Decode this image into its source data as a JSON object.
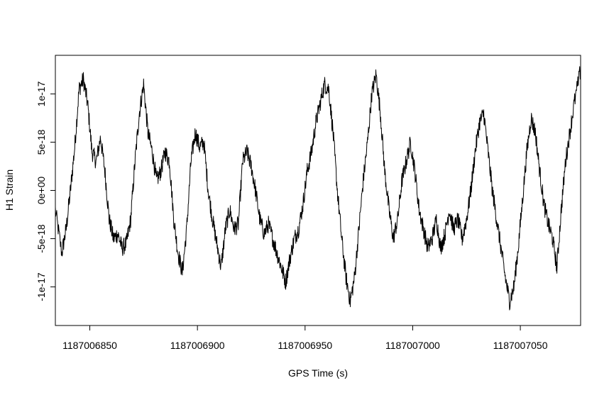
{
  "chart_data": {
    "type": "line",
    "title": "",
    "xlabel": "GPS Time (s)",
    "ylabel": "H1 Strain",
    "xlim": [
      1187006834,
      1187007078
    ],
    "ylim": [
      -1.4e-17,
      1.4e-17
    ],
    "x_ticks": [
      1187006850,
      1187006900,
      1187006950,
      1187007000,
      1187007050
    ],
    "x_tick_labels": [
      "1187006850",
      "1187006900",
      "1187006950",
      "1187007000",
      "1187007050"
    ],
    "y_ticks": [
      -1e-17,
      -5e-18,
      0,
      5e-18,
      1e-17
    ],
    "y_tick_labels": [
      "-1e-17",
      "-5e-18",
      "0e+00",
      "5e-18",
      "1e-17"
    ],
    "grid": false,
    "line_color": "#000000",
    "series": [
      {
        "x": [
          1187006834,
          1187006837,
          1187006839,
          1187006841,
          1187006843,
          1187006845,
          1187006847,
          1187006849,
          1187006851,
          1187006853,
          1187006855,
          1187006857,
          1187006859,
          1187006861,
          1187006863,
          1187006865,
          1187006867,
          1187006869,
          1187006871,
          1187006873,
          1187006875,
          1187006877,
          1187006879,
          1187006881,
          1187006883,
          1187006885,
          1187006887,
          1187006889,
          1187006891,
          1187006893,
          1187006895,
          1187006897,
          1187006899,
          1187006901,
          1187006903,
          1187006905,
          1187006907,
          1187006909,
          1187006911,
          1187006913,
          1187006915,
          1187006917,
          1187006919,
          1187006921,
          1187006923,
          1187006925,
          1187006927,
          1187006929,
          1187006931,
          1187006933,
          1187006935,
          1187006937,
          1187006939,
          1187006941,
          1187006943,
          1187006945,
          1187006947,
          1187006949,
          1187006951,
          1187006953,
          1187006955,
          1187006957,
          1187006959,
          1187006961,
          1187006963,
          1187006965,
          1187006967,
          1187006969,
          1187006971,
          1187006973,
          1187006975,
          1187006977,
          1187006979,
          1187006981,
          1187006983,
          1187006985,
          1187006987,
          1187006989,
          1187006991,
          1187006993,
          1187006995,
          1187006997,
          1187006999,
          1187007001,
          1187007003,
          1187007005,
          1187007007,
          1187007009,
          1187007011,
          1187007013,
          1187007015,
          1187007017,
          1187007019,
          1187007021,
          1187007023,
          1187007025,
          1187007027,
          1187007029,
          1187007031,
          1187007033,
          1187007035,
          1187007037,
          1187007039,
          1187007041,
          1187007043,
          1187007045,
          1187007047,
          1187007049,
          1187007051,
          1187007053,
          1187007055,
          1187007057,
          1187007059,
          1187007061,
          1187007063,
          1187007065,
          1187007067,
          1187007069,
          1187007071,
          1187007073,
          1187007075,
          1187007078
        ],
        "y": [
          -2e-18,
          -6.5e-18,
          -4e-18,
          0,
          4.5e-18,
          1.05e-17,
          1.15e-17,
          9e-18,
          4e-18,
          3e-18,
          5.5e-18,
          2e-18,
          -3e-18,
          -5e-18,
          -4.5e-18,
          -6e-18,
          -5.5e-18,
          -3e-18,
          3e-18,
          8e-18,
          1.1e-17,
          6e-18,
          4e-18,
          1e-18,
          2e-18,
          4e-18,
          3e-18,
          -3e-18,
          -6.5e-18,
          -8.5e-18,
          -4e-18,
          3e-18,
          6e-18,
          4.5e-18,
          5e-18,
          0,
          -3e-18,
          -5.5e-18,
          -8e-18,
          -4e-18,
          -2e-18,
          -4e-18,
          -3.5e-18,
          3e-18,
          4e-18,
          2.5e-18,
          0,
          -3e-18,
          -4.5e-18,
          -3.5e-18,
          -5e-18,
          -6.5e-18,
          -8e-18,
          -9.5e-18,
          -7e-18,
          -5e-18,
          -4e-18,
          -1.5e-18,
          2e-18,
          4e-18,
          7e-18,
          9e-18,
          1.1e-17,
          1.05e-17,
          6e-18,
          0,
          -5e-18,
          -9e-18,
          -1.15e-17,
          -9e-18,
          -4e-18,
          1e-18,
          5e-18,
          1e-17,
          1.2e-17,
          8e-18,
          2e-18,
          -2e-18,
          -5e-18,
          -3e-18,
          1e-18,
          3e-18,
          5e-18,
          2e-18,
          -2e-18,
          -4e-18,
          -6e-18,
          -5e-18,
          -3e-18,
          -6e-18,
          -4.5e-18,
          -2e-18,
          -4e-18,
          -3e-18,
          -5e-18,
          -3e-18,
          0,
          4e-18,
          7e-18,
          8e-18,
          4e-18,
          0,
          -3e-18,
          -6e-18,
          -9e-18,
          -1.15e-17,
          -1e-17,
          -6e-18,
          -1e-18,
          4e-18,
          7.5e-18,
          6e-18,
          2e-18,
          -1.5e-18,
          -3.5e-18,
          -5e-18,
          -8e-18,
          -2e-18,
          3e-18,
          6e-18,
          9e-18,
          1.25e-17
        ]
      }
    ]
  }
}
